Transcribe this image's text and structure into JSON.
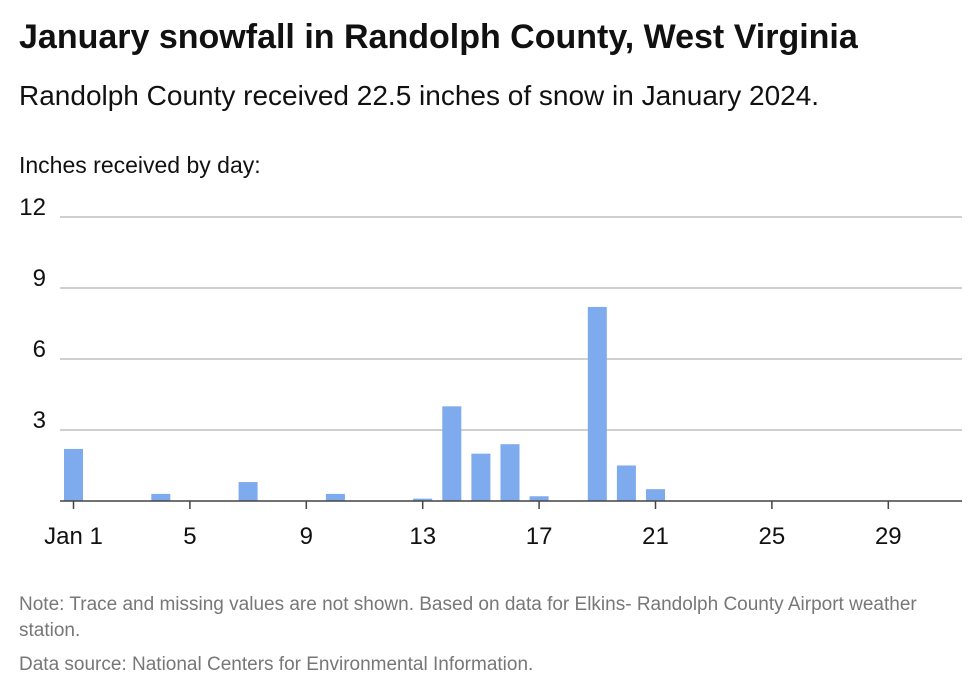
{
  "title": "January snowfall in Randolph County, West Virginia",
  "subtitle": "Randolph County received 22.5 inches of snow in January 2024.",
  "note": "Note: Trace and missing values are not shown. Based on data for Elkins- Randolph County Airport weather station.",
  "source": "Data source: National Centers for Environmental Information.",
  "chart_data": {
    "type": "bar",
    "title": "January snowfall in Randolph County, West Virginia",
    "subtitle": "Randolph County received 22.5 inches of snow in January 2024.",
    "ylabel": "Inches received by day:",
    "xlabel": "",
    "ylim": [
      0,
      12
    ],
    "yticks": [
      3,
      6,
      9,
      12
    ],
    "xlim": [
      1,
      31
    ],
    "xticks": [
      {
        "day": 1,
        "label": "Jan 1"
      },
      {
        "day": 5,
        "label": "5"
      },
      {
        "day": 9,
        "label": "9"
      },
      {
        "day": 13,
        "label": "13"
      },
      {
        "day": 17,
        "label": "17"
      },
      {
        "day": 21,
        "label": "21"
      },
      {
        "day": 25,
        "label": "25"
      },
      {
        "day": 29,
        "label": "29"
      }
    ],
    "grid": true,
    "bar_color": "#7eaaee",
    "bars": [
      {
        "day": 1,
        "value": 2.2
      },
      {
        "day": 4,
        "value": 0.3
      },
      {
        "day": 7,
        "value": 0.8
      },
      {
        "day": 10,
        "value": 0.3
      },
      {
        "day": 13,
        "value": 0.1
      },
      {
        "day": 14,
        "value": 4.0
      },
      {
        "day": 15,
        "value": 2.0
      },
      {
        "day": 16,
        "value": 2.4
      },
      {
        "day": 17,
        "value": 0.2
      },
      {
        "day": 19,
        "value": 8.2
      },
      {
        "day": 20,
        "value": 1.5
      },
      {
        "day": 21,
        "value": 0.5
      }
    ]
  }
}
